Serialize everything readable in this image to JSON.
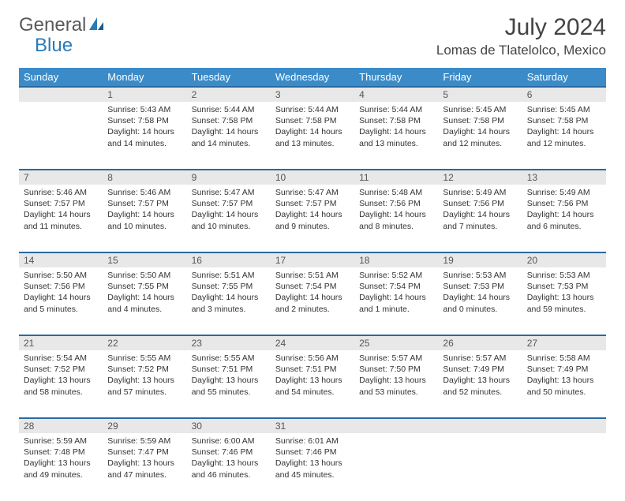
{
  "logo": {
    "text1": "General",
    "text2": "Blue"
  },
  "title": "July 2024",
  "location": "Lomas de Tlatelolco, Mexico",
  "weekdays": [
    "Sunday",
    "Monday",
    "Tuesday",
    "Wednesday",
    "Thursday",
    "Friday",
    "Saturday"
  ],
  "colors": {
    "header_bg": "#3b8bc9",
    "header_text": "#ffffff",
    "daynum_bg": "#e8e8e8",
    "rule": "#2a6aa0",
    "logo_gray": "#5a5a5a",
    "logo_blue": "#2a7ab8"
  },
  "weeks": [
    {
      "nums": [
        "",
        "1",
        "2",
        "3",
        "4",
        "5",
        "6"
      ],
      "cells": [
        [],
        [
          "Sunrise: 5:43 AM",
          "Sunset: 7:58 PM",
          "Daylight: 14 hours",
          "and 14 minutes."
        ],
        [
          "Sunrise: 5:44 AM",
          "Sunset: 7:58 PM",
          "Daylight: 14 hours",
          "and 14 minutes."
        ],
        [
          "Sunrise: 5:44 AM",
          "Sunset: 7:58 PM",
          "Daylight: 14 hours",
          "and 13 minutes."
        ],
        [
          "Sunrise: 5:44 AM",
          "Sunset: 7:58 PM",
          "Daylight: 14 hours",
          "and 13 minutes."
        ],
        [
          "Sunrise: 5:45 AM",
          "Sunset: 7:58 PM",
          "Daylight: 14 hours",
          "and 12 minutes."
        ],
        [
          "Sunrise: 5:45 AM",
          "Sunset: 7:58 PM",
          "Daylight: 14 hours",
          "and 12 minutes."
        ]
      ]
    },
    {
      "nums": [
        "7",
        "8",
        "9",
        "10",
        "11",
        "12",
        "13"
      ],
      "cells": [
        [
          "Sunrise: 5:46 AM",
          "Sunset: 7:57 PM",
          "Daylight: 14 hours",
          "and 11 minutes."
        ],
        [
          "Sunrise: 5:46 AM",
          "Sunset: 7:57 PM",
          "Daylight: 14 hours",
          "and 10 minutes."
        ],
        [
          "Sunrise: 5:47 AM",
          "Sunset: 7:57 PM",
          "Daylight: 14 hours",
          "and 10 minutes."
        ],
        [
          "Sunrise: 5:47 AM",
          "Sunset: 7:57 PM",
          "Daylight: 14 hours",
          "and 9 minutes."
        ],
        [
          "Sunrise: 5:48 AM",
          "Sunset: 7:56 PM",
          "Daylight: 14 hours",
          "and 8 minutes."
        ],
        [
          "Sunrise: 5:49 AM",
          "Sunset: 7:56 PM",
          "Daylight: 14 hours",
          "and 7 minutes."
        ],
        [
          "Sunrise: 5:49 AM",
          "Sunset: 7:56 PM",
          "Daylight: 14 hours",
          "and 6 minutes."
        ]
      ]
    },
    {
      "nums": [
        "14",
        "15",
        "16",
        "17",
        "18",
        "19",
        "20"
      ],
      "cells": [
        [
          "Sunrise: 5:50 AM",
          "Sunset: 7:56 PM",
          "Daylight: 14 hours",
          "and 5 minutes."
        ],
        [
          "Sunrise: 5:50 AM",
          "Sunset: 7:55 PM",
          "Daylight: 14 hours",
          "and 4 minutes."
        ],
        [
          "Sunrise: 5:51 AM",
          "Sunset: 7:55 PM",
          "Daylight: 14 hours",
          "and 3 minutes."
        ],
        [
          "Sunrise: 5:51 AM",
          "Sunset: 7:54 PM",
          "Daylight: 14 hours",
          "and 2 minutes."
        ],
        [
          "Sunrise: 5:52 AM",
          "Sunset: 7:54 PM",
          "Daylight: 14 hours",
          "and 1 minute."
        ],
        [
          "Sunrise: 5:53 AM",
          "Sunset: 7:53 PM",
          "Daylight: 14 hours",
          "and 0 minutes."
        ],
        [
          "Sunrise: 5:53 AM",
          "Sunset: 7:53 PM",
          "Daylight: 13 hours",
          "and 59 minutes."
        ]
      ]
    },
    {
      "nums": [
        "21",
        "22",
        "23",
        "24",
        "25",
        "26",
        "27"
      ],
      "cells": [
        [
          "Sunrise: 5:54 AM",
          "Sunset: 7:52 PM",
          "Daylight: 13 hours",
          "and 58 minutes."
        ],
        [
          "Sunrise: 5:55 AM",
          "Sunset: 7:52 PM",
          "Daylight: 13 hours",
          "and 57 minutes."
        ],
        [
          "Sunrise: 5:55 AM",
          "Sunset: 7:51 PM",
          "Daylight: 13 hours",
          "and 55 minutes."
        ],
        [
          "Sunrise: 5:56 AM",
          "Sunset: 7:51 PM",
          "Daylight: 13 hours",
          "and 54 minutes."
        ],
        [
          "Sunrise: 5:57 AM",
          "Sunset: 7:50 PM",
          "Daylight: 13 hours",
          "and 53 minutes."
        ],
        [
          "Sunrise: 5:57 AM",
          "Sunset: 7:49 PM",
          "Daylight: 13 hours",
          "and 52 minutes."
        ],
        [
          "Sunrise: 5:58 AM",
          "Sunset: 7:49 PM",
          "Daylight: 13 hours",
          "and 50 minutes."
        ]
      ]
    },
    {
      "nums": [
        "28",
        "29",
        "30",
        "31",
        "",
        "",
        ""
      ],
      "cells": [
        [
          "Sunrise: 5:59 AM",
          "Sunset: 7:48 PM",
          "Daylight: 13 hours",
          "and 49 minutes."
        ],
        [
          "Sunrise: 5:59 AM",
          "Sunset: 7:47 PM",
          "Daylight: 13 hours",
          "and 47 minutes."
        ],
        [
          "Sunrise: 6:00 AM",
          "Sunset: 7:46 PM",
          "Daylight: 13 hours",
          "and 46 minutes."
        ],
        [
          "Sunrise: 6:01 AM",
          "Sunset: 7:46 PM",
          "Daylight: 13 hours",
          "and 45 minutes."
        ],
        [],
        [],
        []
      ]
    }
  ]
}
